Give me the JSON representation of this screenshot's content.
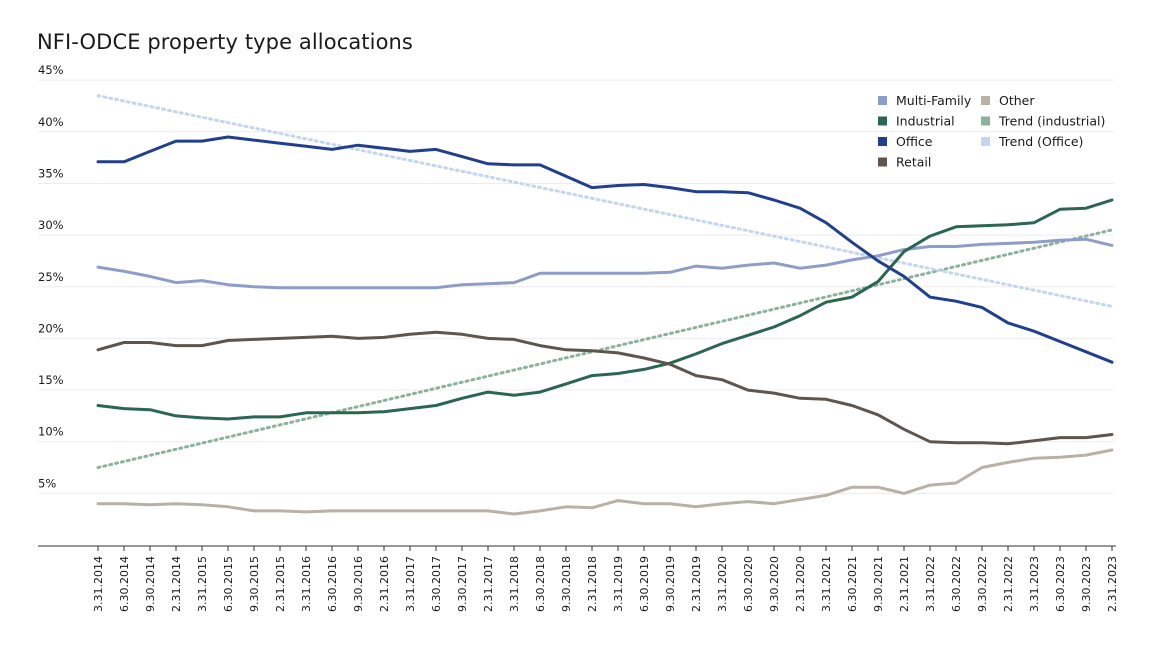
{
  "chart_data": {
    "type": "line",
    "title": "NFI-ODCE property type allocations",
    "xlabel": "",
    "ylabel": "",
    "ylim": [
      0,
      45
    ],
    "yticks": [
      5,
      10,
      15,
      20,
      25,
      30,
      35,
      40,
      45
    ],
    "ytick_labels": [
      "5%",
      "10%",
      "15%",
      "20%",
      "25%",
      "30%",
      "35%",
      "40%",
      "45%"
    ],
    "grid": true,
    "legend_position": "top-right",
    "categories": [
      "3.31.2014",
      "6.30.2014",
      "9.30.2014",
      "2.31.2014",
      "3.31.2015",
      "6.30.2015",
      "9.30.2015",
      "2.31.2015",
      "3.31.2016",
      "6.30.2016",
      "9.30.2016",
      "2.31.2016",
      "3.31.2017",
      "6.30.2017",
      "9.30.2017",
      "2.31.2017",
      "3.31.2018",
      "6.30.2018",
      "9.30.2018",
      "2.31.2018",
      "3.31.2019",
      "6.30.2019",
      "9.30.2019",
      "2.31.2019",
      "3.31.2020",
      "6.30.2020",
      "9.30.2020",
      "2.31.2020",
      "3.31.2021",
      "6.30.2021",
      "9.30.2021",
      "2.31.2021",
      "3.31.2022",
      "6.30.2022",
      "9.30.2022",
      "2.31.2022",
      "3.31.2023",
      "6.30.2023",
      "9.30.2023",
      "2.31.2023"
    ],
    "series": [
      {
        "name": "Multi-Family",
        "color": "#8e9dc8",
        "style": "solid",
        "values": [
          26.9,
          26.5,
          26.0,
          25.4,
          25.6,
          25.2,
          25.0,
          24.9,
          24.9,
          24.9,
          24.9,
          24.9,
          24.9,
          24.9,
          25.2,
          25.3,
          25.4,
          26.3,
          26.3,
          26.3,
          26.3,
          26.3,
          26.4,
          27.0,
          26.8,
          27.1,
          27.3,
          26.8,
          27.1,
          27.6,
          28.0,
          28.6,
          28.9,
          28.9,
          29.1,
          29.2,
          29.3,
          29.5,
          29.6,
          29.0
        ]
      },
      {
        "name": "Industrial",
        "color": "#2a6650",
        "style": "solid",
        "values": [
          13.5,
          13.2,
          13.1,
          12.5,
          12.3,
          12.2,
          12.4,
          12.4,
          12.8,
          12.8,
          12.8,
          12.9,
          13.2,
          13.5,
          14.2,
          14.8,
          14.5,
          14.8,
          15.6,
          16.4,
          16.6,
          17.0,
          17.6,
          18.5,
          19.5,
          20.3,
          21.1,
          22.2,
          23.5,
          24.0,
          25.5,
          28.4,
          29.9,
          30.8,
          30.9,
          31.0,
          31.2,
          32.5,
          32.6,
          33.4
        ]
      },
      {
        "name": "Office",
        "color": "#213f8c",
        "style": "solid",
        "values": [
          37.1,
          37.1,
          38.1,
          39.1,
          39.1,
          39.5,
          39.2,
          38.9,
          38.6,
          38.3,
          38.7,
          38.4,
          38.1,
          38.3,
          37.6,
          36.9,
          36.8,
          36.8,
          35.7,
          34.6,
          34.8,
          34.9,
          34.6,
          34.2,
          34.2,
          34.1,
          33.4,
          32.6,
          31.2,
          29.3,
          27.5,
          26.0,
          24.0,
          23.6,
          23.0,
          21.5,
          20.7,
          19.7,
          18.7,
          17.7
        ]
      },
      {
        "name": "Retail",
        "color": "#5e554e",
        "style": "solid",
        "values": [
          18.9,
          19.6,
          19.6,
          19.3,
          19.3,
          19.8,
          19.9,
          20.0,
          20.1,
          20.2,
          20.0,
          20.1,
          20.4,
          20.6,
          20.4,
          20.0,
          19.9,
          19.3,
          18.9,
          18.8,
          18.6,
          18.1,
          17.5,
          16.4,
          16.0,
          15.0,
          14.7,
          14.2,
          14.1,
          13.5,
          12.6,
          11.2,
          10.0,
          9.9,
          9.9,
          9.8,
          10.1,
          10.4,
          10.4,
          10.7
        ]
      },
      {
        "name": "Other",
        "color": "#bab1a6",
        "style": "solid",
        "values": [
          4.0,
          4.0,
          3.9,
          4.0,
          3.9,
          3.7,
          3.3,
          3.3,
          3.2,
          3.3,
          3.3,
          3.3,
          3.3,
          3.3,
          3.3,
          3.3,
          3.0,
          3.3,
          3.7,
          3.6,
          4.3,
          4.0,
          4.0,
          3.7,
          4.0,
          4.2,
          4.0,
          4.4,
          4.8,
          5.6,
          5.6,
          5.0,
          5.8,
          6.0,
          7.5,
          8.0,
          8.4,
          8.5,
          8.7,
          9.2
        ]
      },
      {
        "name": "Trend (industrial)",
        "color": "#8ab29d",
        "style": "dotted",
        "values_from_to": [
          7.5,
          30.5
        ]
      },
      {
        "name": "Trend (Office)",
        "color": "#c3d6ef",
        "style": "dotted",
        "values_from_to": [
          43.5,
          23.1
        ]
      }
    ],
    "legend": [
      [
        "Multi-Family",
        "Other"
      ],
      [
        "Industrial",
        "Trend (industrial)"
      ],
      [
        "Office",
        "Trend (Office)"
      ],
      [
        "Retail",
        ""
      ]
    ]
  }
}
